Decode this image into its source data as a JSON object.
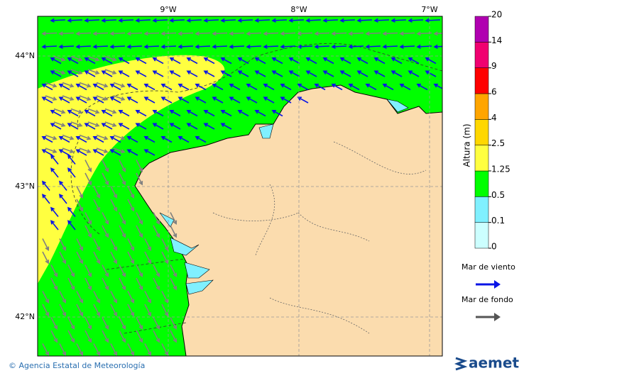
{
  "map": {
    "lon_labels": [
      "9°W",
      "8°W",
      "7°W"
    ],
    "lat_labels": [
      "44°N",
      "43°N",
      "42°N"
    ]
  },
  "colorbar": {
    "title": "Altura (m)",
    "labels": [
      "0",
      "0.1",
      "0.5",
      "1.25",
      "2.5",
      "4",
      "6",
      "9",
      "14",
      "20"
    ],
    "colors": [
      "#ccffff",
      "#80f0ff",
      "#00ff00",
      "#ffff40",
      "#ffd700",
      "#ffa500",
      "#ff0000",
      "#f00070",
      "#b000b0"
    ]
  },
  "legend": [
    {
      "label": "Mar de viento",
      "color": "#0a14e6"
    },
    {
      "label": "Mar de fondo",
      "color": "#555555"
    }
  ],
  "footer": {
    "credit": "© Agencia Estatal de Meteorología",
    "logo": "aemet"
  }
}
